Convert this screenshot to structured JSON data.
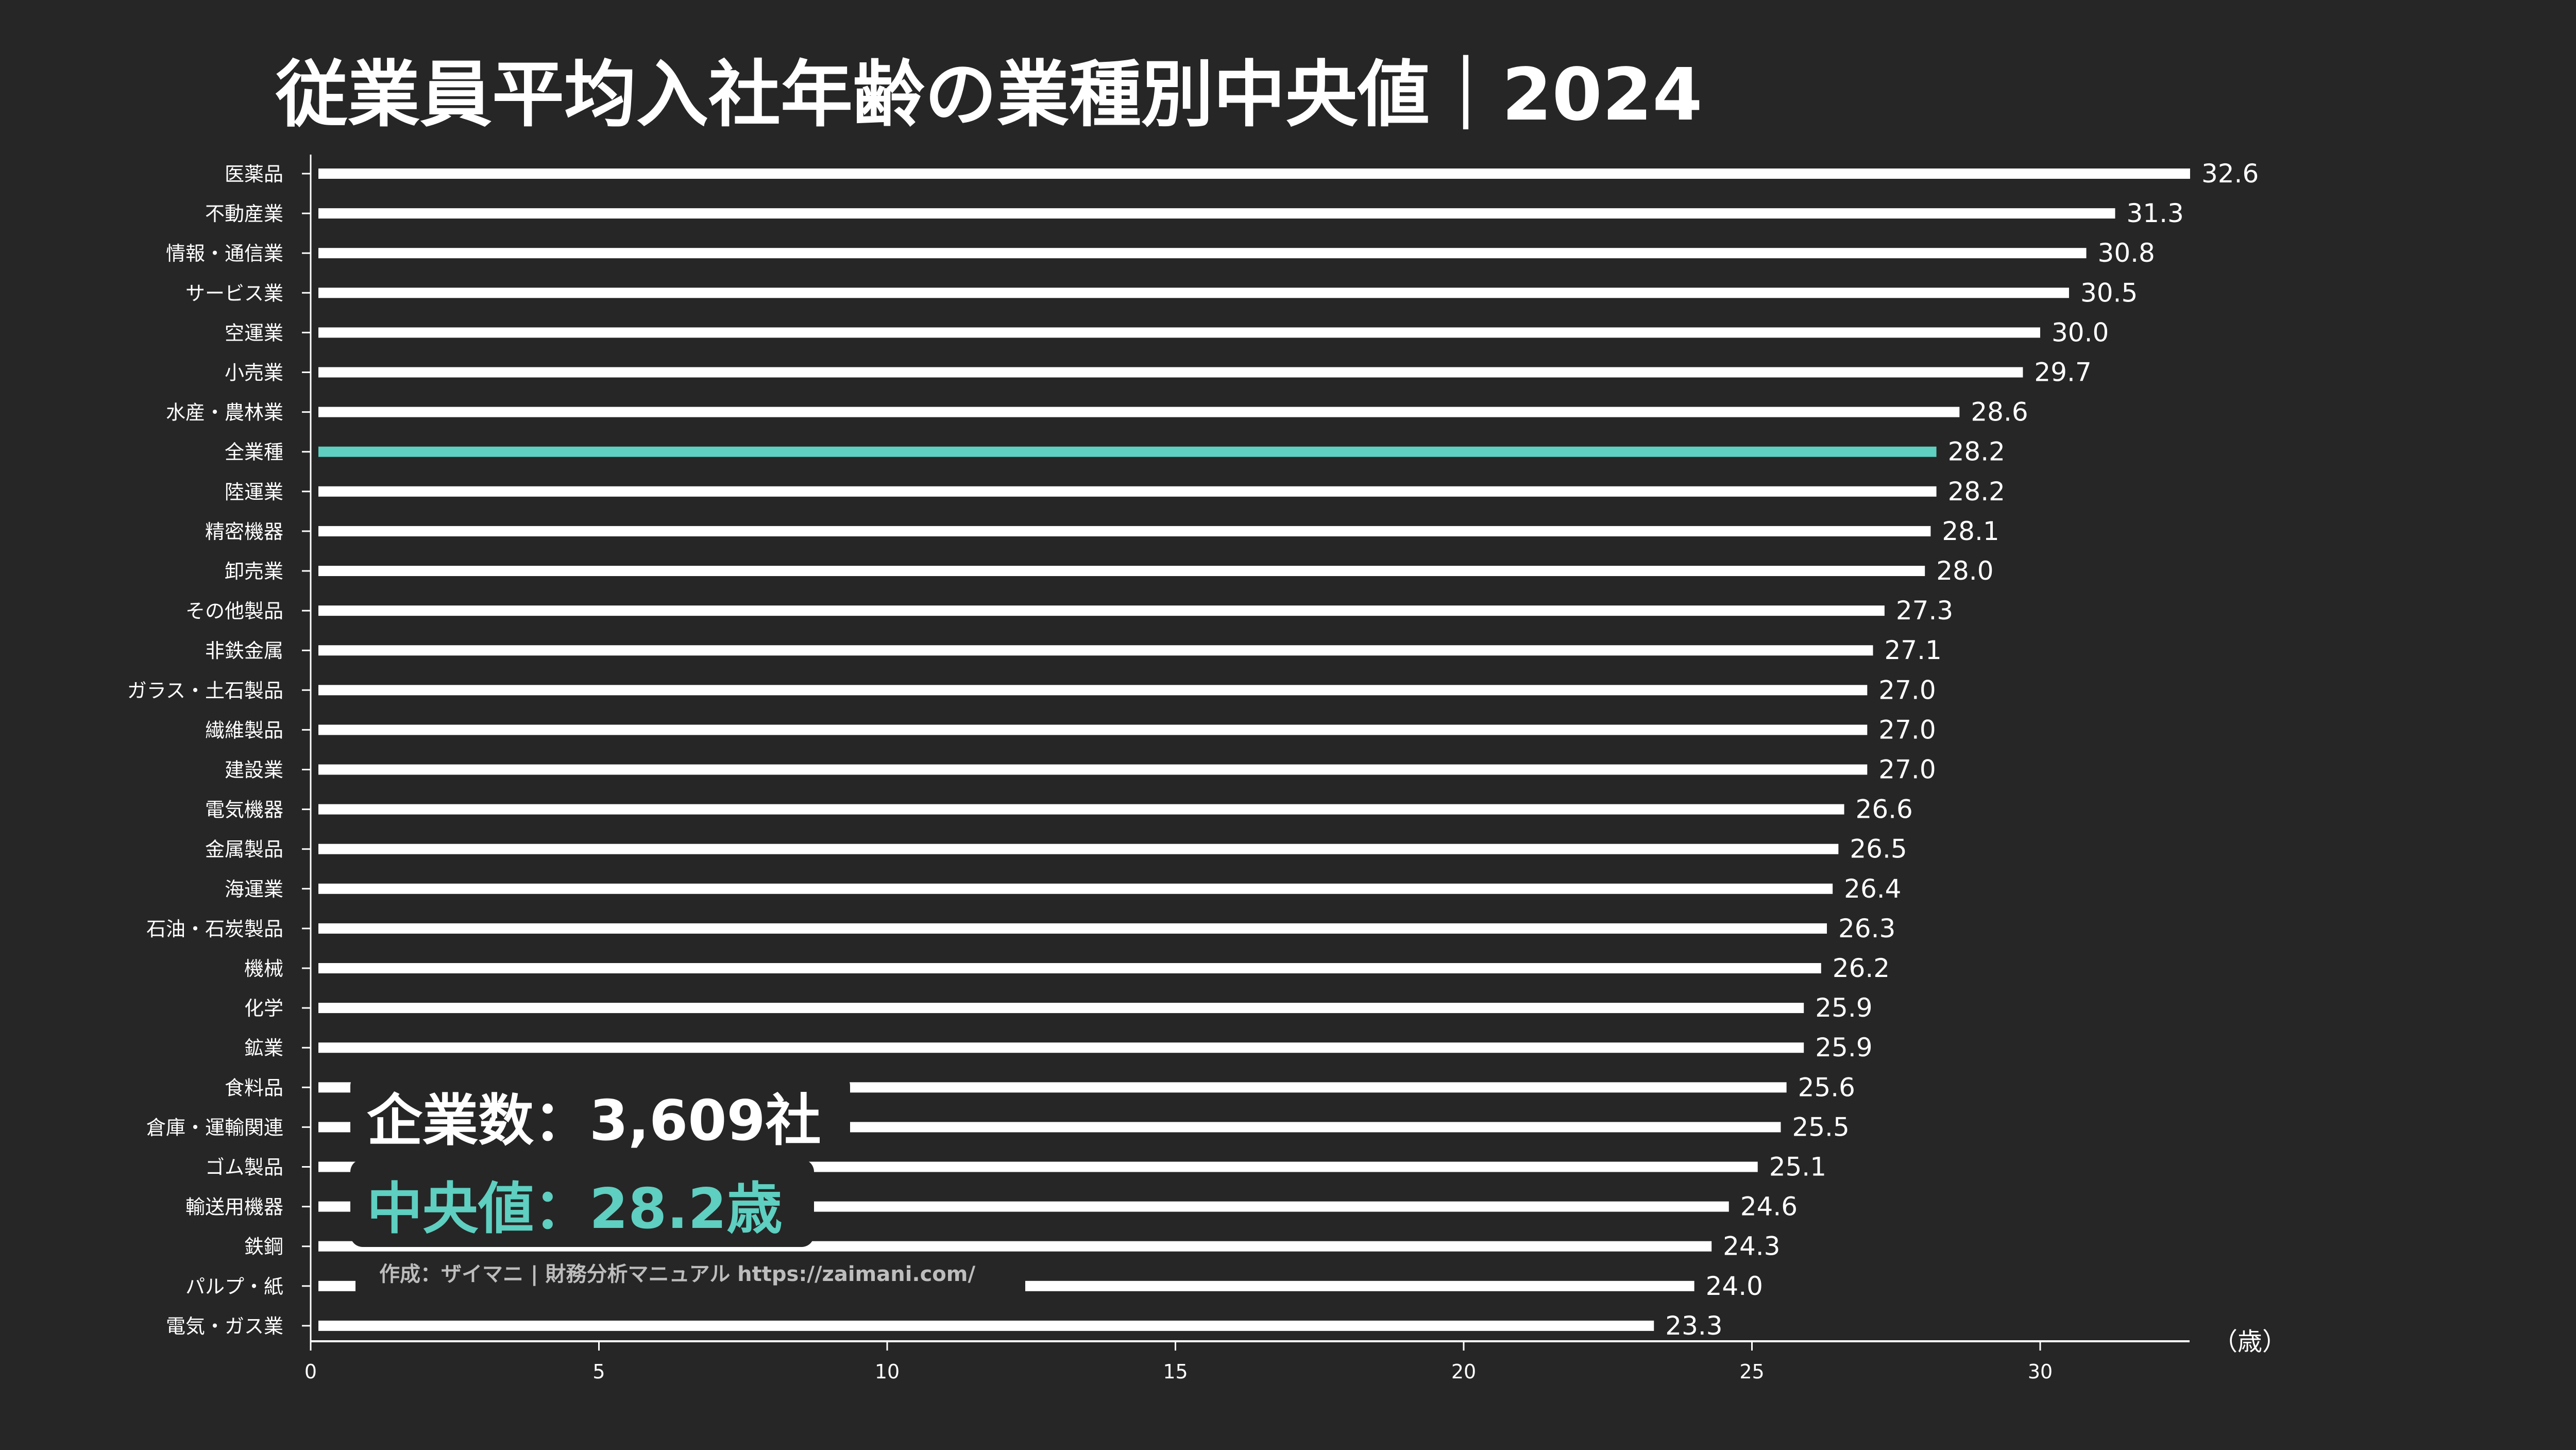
{
  "chart_data": {
    "type": "bar",
    "orientation": "horizontal",
    "title": "従業員平均入社年齢の業種別中央値｜2024",
    "xlabel": "（歳）",
    "xlim": [
      0,
      32.6
    ],
    "xticks": [
      "0",
      "5",
      "10",
      "15",
      "20",
      "25",
      "30"
    ],
    "grid": false,
    "categories": [
      "医薬品",
      "不動産業",
      "情報・通信業",
      "サービス業",
      "空運業",
      "小売業",
      "水産・農林業",
      "全業種",
      "陸運業",
      "精密機器",
      "卸売業",
      "その他製品",
      "非鉄金属",
      "ガラス・土石製品",
      "繊維製品",
      "建設業",
      "電気機器",
      "金属製品",
      "海運業",
      "石油・石炭製品",
      "機械",
      "化学",
      "鉱業",
      "食料品",
      "倉庫・運輸関連",
      "ゴム製品",
      "輸送用機器",
      "鉄鋼",
      "パルプ・紙",
      "電気・ガス業"
    ],
    "values": [
      32.6,
      31.3,
      30.8,
      30.5,
      30.0,
      29.7,
      28.6,
      28.2,
      28.2,
      28.1,
      28.0,
      27.3,
      27.1,
      27.0,
      27.0,
      27.0,
      26.6,
      26.5,
      26.4,
      26.3,
      26.2,
      25.9,
      25.9,
      25.6,
      25.5,
      25.1,
      24.6,
      24.3,
      24.0,
      23.3
    ],
    "value_labels": [
      "32.6",
      "31.3",
      "30.8",
      "30.5",
      "30.0",
      "29.7",
      "28.6",
      "28.2",
      "28.2",
      "28.1",
      "28.0",
      "27.3",
      "27.1",
      "27.0",
      "27.0",
      "27.0",
      "26.6",
      "26.5",
      "26.4",
      "26.3",
      "26.2",
      "25.9",
      "25.9",
      "25.6",
      "25.5",
      "25.1",
      "24.6",
      "24.3",
      "24.0",
      "23.3"
    ],
    "highlight_category": "全業種"
  },
  "summary_box": {
    "companies_text": "企業数：3,609社",
    "median_text": "中央値：28.2歳"
  },
  "credit": "作成：ザイマニ | 財務分析マニュアル https://zaimani.com/",
  "colors": {
    "background": "#262626",
    "bar": "#ffffff",
    "highlight": "#5ecfc0",
    "text": "#ffffff",
    "credit": "#bdbdbd"
  }
}
